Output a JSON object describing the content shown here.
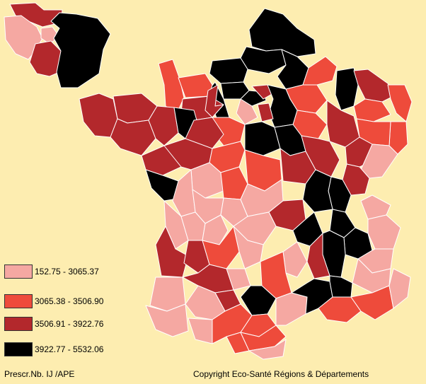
{
  "colors": {
    "background": "#FDEDB0",
    "class1": "#F5A8A2",
    "class2": "#EE4B3B",
    "class3": "#B3282C",
    "class4": "#000000"
  },
  "legend": {
    "items": [
      {
        "label": "152.75 - 3065.37",
        "class": "class1"
      },
      {
        "label": "3065.38 - 3506.90",
        "class": "class2"
      },
      {
        "label": "3506.91 - 3922.76",
        "class": "class3"
      },
      {
        "label": "3922.77 - 5532.06",
        "class": "class4"
      }
    ]
  },
  "footer": {
    "indicator": "Prescr.Nb. IJ /APE",
    "copyright": "Copyright Eco-Santé Régions & Départements"
  }
}
